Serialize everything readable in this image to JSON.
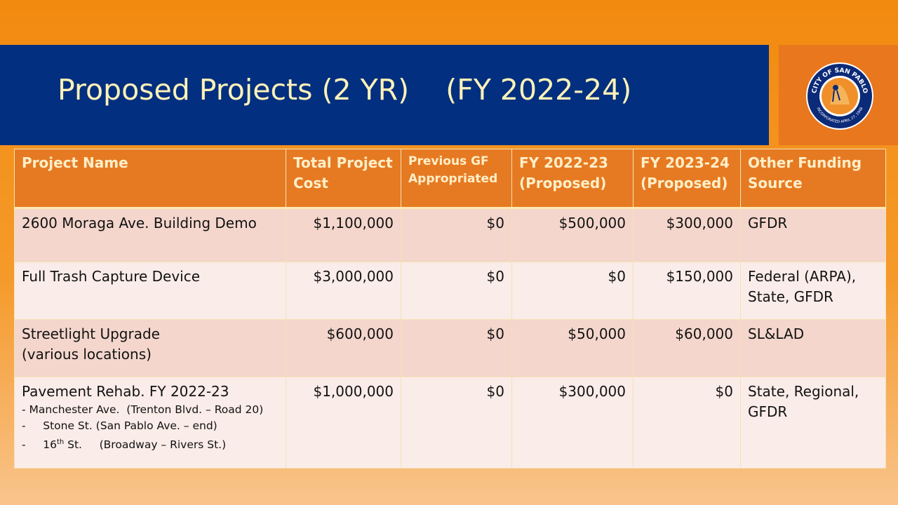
{
  "title": "Proposed Projects (2 YR)    (FY 2022-24)",
  "logo": {
    "text_top": "CITY OF SAN PABLO",
    "text_bottom": "INCORPORATED APRIL 27, 1948"
  },
  "table": {
    "headers": [
      "Project Name",
      "Total Project Cost",
      "Previous GF Appropriated",
      "FY 2022-23 (Proposed)",
      "FY 2023-24 (Proposed)",
      "Other Funding Source"
    ],
    "rows": [
      {
        "name_lines": [
          "2600 Moraga Ave. Building Demo"
        ],
        "total": "$1,100,000",
        "previous": "$0",
        "fy2223": "$500,000",
        "fy2324": "$300,000",
        "funding_lines": [
          "GFDR"
        ]
      },
      {
        "name_lines": [
          "Full Trash Capture Device"
        ],
        "total": "$3,000,000",
        "previous": "$0",
        "fy2223": "$0",
        "fy2324": "$150,000",
        "funding_lines": [
          "Federal (ARPA),",
          "State, GFDR"
        ]
      },
      {
        "name_lines": [
          "Streetlight Upgrade",
          "(various locations)"
        ],
        "total": "$600,000",
        "previous": "$0",
        "fy2223": "$50,000",
        "fy2324": "$60,000",
        "funding_lines": [
          "SL&LAD"
        ]
      },
      {
        "name_lines": [
          "Pavement Rehab. FY 2022-23"
        ],
        "sub_items": [
          "- Manchester Ave.  (Trenton Blvd. – Road 20)",
          "-     Stone St. (San Pablo Ave. – end)",
          "-     16",
          "th",
          " St.     (Broadway – Rivers St.)"
        ],
        "total": "$1,000,000",
        "previous": "$0",
        "fy2223": "$300,000",
        "fy2324": "$0",
        "funding_lines": [
          "State, Regional,",
          "GFDR"
        ]
      }
    ]
  }
}
